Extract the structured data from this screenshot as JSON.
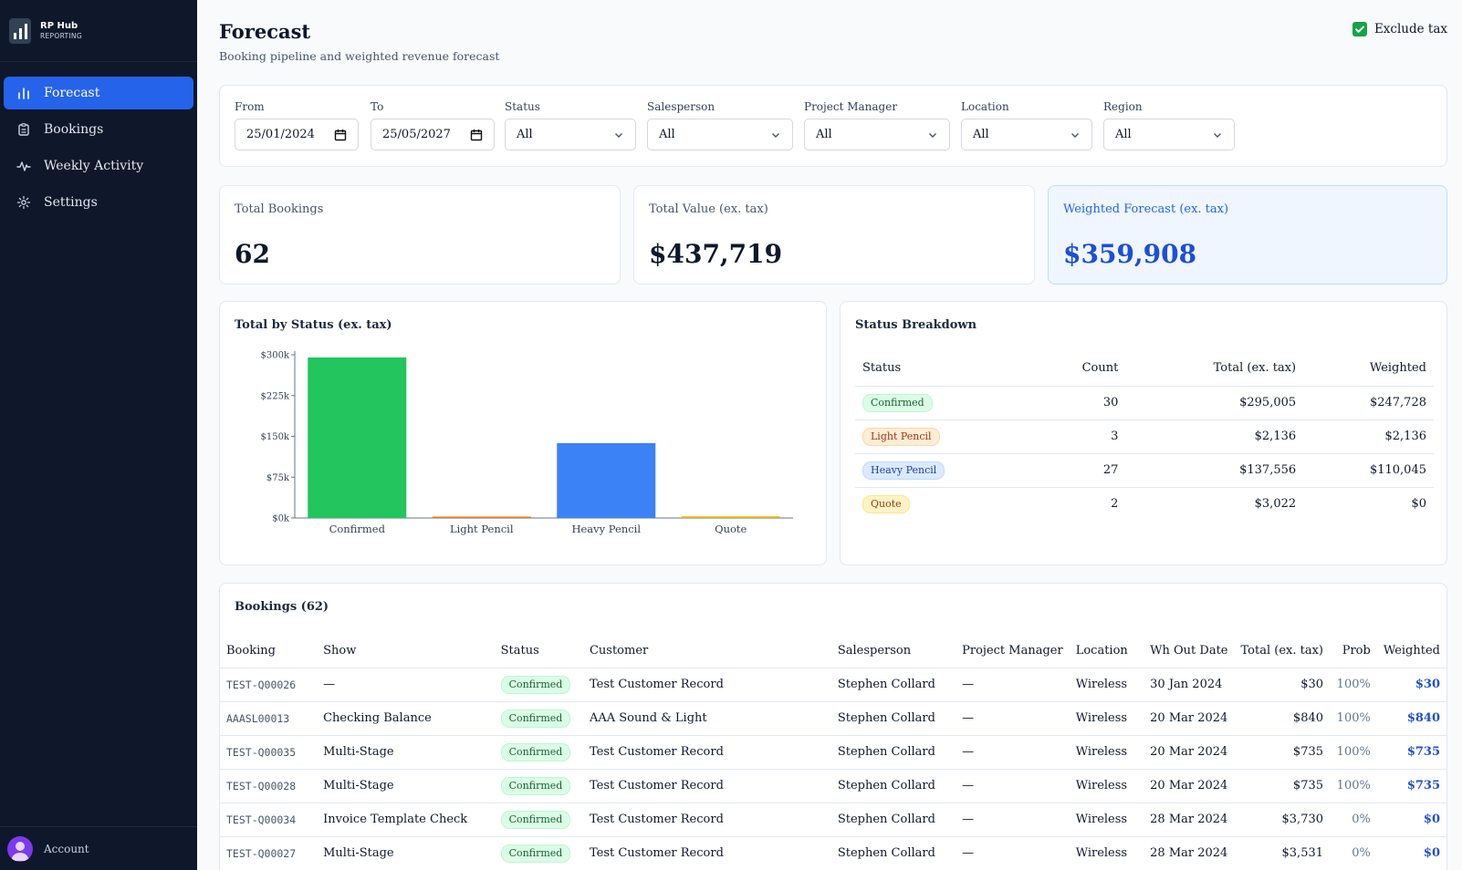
{
  "brand": {
    "name": "RP Hub",
    "sub": "REPORTING"
  },
  "nav": [
    {
      "label": "Forecast",
      "icon": "bar-chart-icon",
      "active": true
    },
    {
      "label": "Bookings",
      "icon": "clipboard-icon",
      "active": false
    },
    {
      "label": "Weekly Activity",
      "icon": "activity-icon",
      "active": false
    },
    {
      "label": "Settings",
      "icon": "gear-icon",
      "active": false
    }
  ],
  "account": {
    "label": "Account"
  },
  "header": {
    "title": "Forecast",
    "subtitle": "Booking pipeline and weighted revenue forecast",
    "exclude_tax_label": "Exclude tax",
    "exclude_tax_checked": true
  },
  "filters": {
    "from": {
      "label": "From",
      "value": "25/01/2024"
    },
    "to": {
      "label": "To",
      "value": "25/05/2027"
    },
    "status": {
      "label": "Status",
      "value": "All"
    },
    "salesperson": {
      "label": "Salesperson",
      "value": "All"
    },
    "project_manager": {
      "label": "Project Manager",
      "value": "All"
    },
    "location": {
      "label": "Location",
      "value": "All"
    },
    "region": {
      "label": "Region",
      "value": "All"
    }
  },
  "stats": {
    "total_bookings": {
      "label": "Total Bookings",
      "value": "62"
    },
    "total_value": {
      "label": "Total Value (ex. tax)",
      "value": "$437,719"
    },
    "weighted_forecast": {
      "label": "Weighted Forecast (ex. tax)",
      "value": "$359,908"
    }
  },
  "colors": {
    "confirmed": "#22c55e",
    "light_pencil": "#f97316",
    "heavy_pencil": "#3b82f6",
    "quote": "#eab308",
    "accent": "#2563eb"
  },
  "chart_title": "Total by Status (ex. tax)",
  "chart_data": {
    "type": "bar",
    "title": "Total by Status (ex. tax)",
    "categories": [
      "Confirmed",
      "Light Pencil",
      "Heavy Pencil",
      "Quote"
    ],
    "values": [
      295005,
      2136,
      137556,
      3022
    ],
    "ylim": [
      0,
      300000
    ],
    "yticks": [
      0,
      75000,
      150000,
      225000,
      300000
    ],
    "ytick_labels": [
      "$0k",
      "$75k",
      "$150k",
      "$225k",
      "$300k"
    ],
    "grid": false,
    "legend": "none"
  },
  "status_breakdown": {
    "title": "Status Breakdown",
    "headers": [
      "Status",
      "Count",
      "Total (ex. tax)",
      "Weighted"
    ],
    "rows": [
      {
        "status": "Confirmed",
        "count": "30",
        "total": "$295,005",
        "weighted": "$247,728"
      },
      {
        "status": "Light Pencil",
        "count": "3",
        "total": "$2,136",
        "weighted": "$2,136"
      },
      {
        "status": "Heavy Pencil",
        "count": "27",
        "total": "$137,556",
        "weighted": "$110,045"
      },
      {
        "status": "Quote",
        "count": "2",
        "total": "$3,022",
        "weighted": "$0"
      }
    ]
  },
  "bookings": {
    "title": "Bookings (62)",
    "headers": [
      "Booking",
      "Show",
      "Status",
      "Customer",
      "Salesperson",
      "Project Manager",
      "Location",
      "Wh Out Date",
      "Total (ex. tax)",
      "Prob",
      "Weighted"
    ],
    "rows": [
      [
        "TEST-Q00026",
        "—",
        "Confirmed",
        "Test Customer Record",
        "Stephen Collard",
        "—",
        "Wireless",
        "30 Jan 2024",
        "$30",
        "100%",
        "$30"
      ],
      [
        "AAASL00013",
        "Checking Balance",
        "Confirmed",
        "AAA Sound & Light",
        "Stephen Collard",
        "—",
        "Wireless",
        "20 Mar 2024",
        "$840",
        "100%",
        "$840"
      ],
      [
        "TEST-Q00035",
        "Multi-Stage",
        "Confirmed",
        "Test Customer Record",
        "Stephen Collard",
        "—",
        "Wireless",
        "20 Mar 2024",
        "$735",
        "100%",
        "$735"
      ],
      [
        "TEST-Q00028",
        "Multi-Stage",
        "Confirmed",
        "Test Customer Record",
        "Stephen Collard",
        "—",
        "Wireless",
        "20 Mar 2024",
        "$735",
        "100%",
        "$735"
      ],
      [
        "TEST-Q00034",
        "Invoice Template Check",
        "Confirmed",
        "Test Customer Record",
        "Stephen Collard",
        "—",
        "Wireless",
        "28 Mar 2024",
        "$3,730",
        "0%",
        "$0"
      ],
      [
        "TEST-Q00027",
        "Multi-Stage",
        "Confirmed",
        "Test Customer Record",
        "Stephen Collard",
        "—",
        "Wireless",
        "28 Mar 2024",
        "$3,531",
        "0%",
        "$0"
      ]
    ]
  }
}
